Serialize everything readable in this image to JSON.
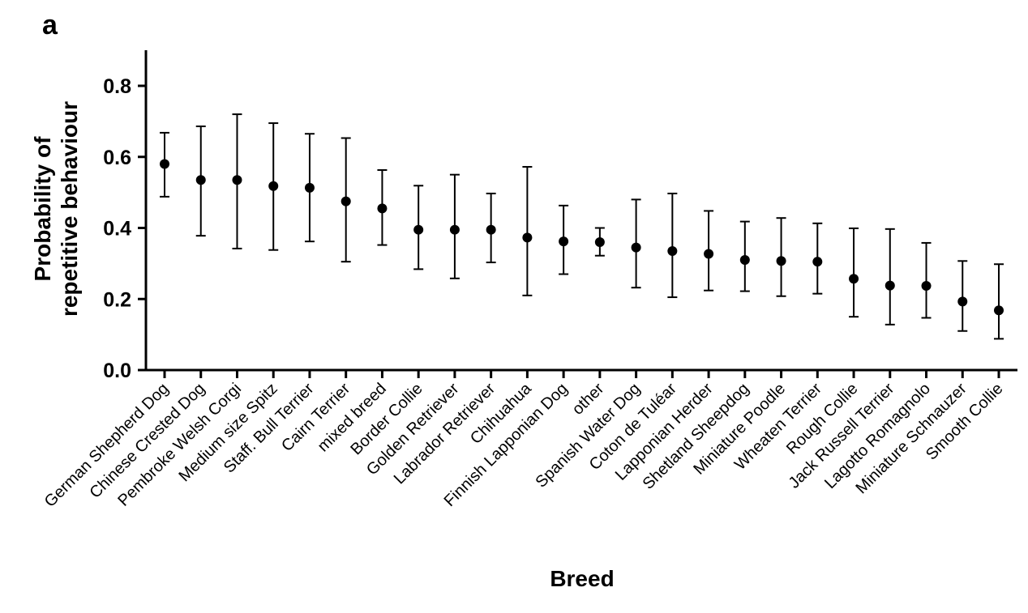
{
  "panel_label": "a",
  "chart_data": {
    "type": "scatter",
    "xlabel": "Breed",
    "ylabel": [
      "Probability of",
      "repetitive behaviour"
    ],
    "ylim": [
      0,
      0.9
    ],
    "yticks": [
      0.0,
      0.2,
      0.4,
      0.6,
      0.8
    ],
    "ytick_labels": [
      "0.0",
      "0.2",
      "0.4",
      "0.6",
      "0.8"
    ],
    "grid": false,
    "categories": [
      "German Shepherd Dog",
      "Chinese Crested Dog",
      "Pembroke Welsh Corgi",
      "Medium size Spitz",
      "Staff. Bull Terrier",
      "Cairn Terrier",
      "mixed breed",
      "Border Collie",
      "Golden Retriever",
      "Labrador Retriever",
      "Chihuahua",
      "Finnish Lapponian Dog",
      "other",
      "Spanish Water Dog",
      "Coton de Tuléar",
      "Lapponian Herder",
      "Shetland Sheepdog",
      "Miniature Poodle",
      "Wheaten Terrier",
      "Rough Collie",
      "Jack Russell Terrier",
      "Lagotto Romagnolo",
      "Miniature Schnauzer",
      "Smooth Collie"
    ],
    "values": [
      0.58,
      0.535,
      0.535,
      0.518,
      0.513,
      0.475,
      0.455,
      0.395,
      0.395,
      0.395,
      0.373,
      0.362,
      0.36,
      0.345,
      0.335,
      0.327,
      0.31,
      0.307,
      0.305,
      0.257,
      0.238,
      0.237,
      0.193,
      0.168
    ],
    "lower": [
      0.488,
      0.378,
      0.342,
      0.338,
      0.362,
      0.305,
      0.352,
      0.284,
      0.258,
      0.303,
      0.21,
      0.27,
      0.322,
      0.232,
      0.205,
      0.224,
      0.222,
      0.208,
      0.215,
      0.15,
      0.128,
      0.147,
      0.11,
      0.088
    ],
    "upper": [
      0.668,
      0.686,
      0.72,
      0.695,
      0.665,
      0.653,
      0.563,
      0.519,
      0.55,
      0.497,
      0.572,
      0.463,
      0.4,
      0.48,
      0.497,
      0.448,
      0.418,
      0.428,
      0.413,
      0.399,
      0.397,
      0.358,
      0.307,
      0.298
    ]
  }
}
